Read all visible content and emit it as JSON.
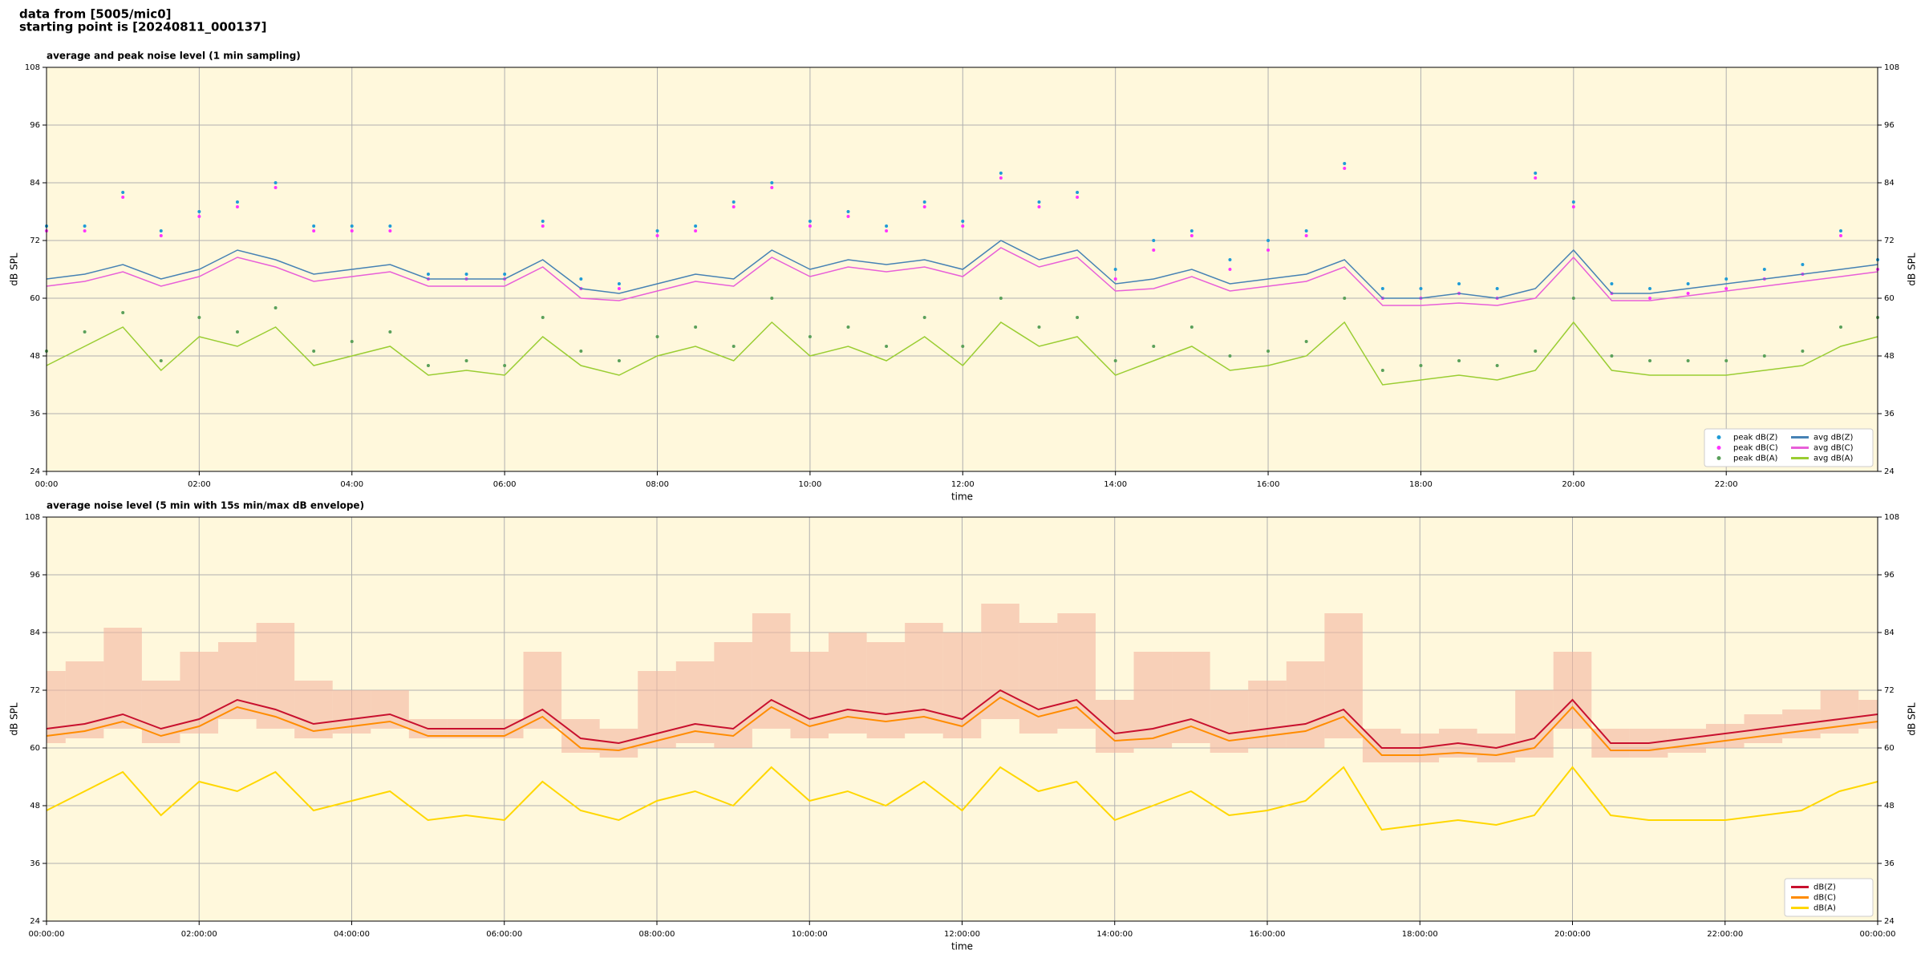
{
  "header": {
    "lines": [
      "data from [5005/mic0]",
      "starting point is [20240811_000137]"
    ]
  },
  "chart_data": [
    {
      "type": "line",
      "title": "average and peak noise level (1 min sampling)",
      "xlabel": "time",
      "ylabel": "dB SPL",
      "x": [
        0,
        30,
        60,
        90,
        120,
        150,
        180,
        210,
        240,
        270,
        300,
        330,
        360,
        390,
        420,
        450,
        480,
        510,
        540,
        570,
        600,
        630,
        660,
        690,
        720,
        750,
        780,
        810,
        840,
        870,
        900,
        930,
        960,
        990,
        1020,
        1050,
        1080,
        1110,
        1140,
        1170,
        1200,
        1230,
        1260,
        1290,
        1320,
        1350,
        1380,
        1410,
        1439
      ],
      "xlim": [
        0,
        1439
      ],
      "xticks": [
        {
          "value": 0,
          "label": "00:00"
        },
        {
          "value": 120,
          "label": "02:00"
        },
        {
          "value": 240,
          "label": "04:00"
        },
        {
          "value": 360,
          "label": "06:00"
        },
        {
          "value": 480,
          "label": "08:00"
        },
        {
          "value": 600,
          "label": "10:00"
        },
        {
          "value": 720,
          "label": "12:00"
        },
        {
          "value": 840,
          "label": "14:00"
        },
        {
          "value": 960,
          "label": "16:00"
        },
        {
          "value": 1080,
          "label": "18:00"
        },
        {
          "value": 1200,
          "label": "20:00"
        },
        {
          "value": 1320,
          "label": "22:00"
        }
      ],
      "ylim": [
        24,
        108
      ],
      "yticks": [
        24,
        36,
        48,
        60,
        72,
        84,
        96,
        108
      ],
      "grid": true,
      "legend": "lower right",
      "legend_columns": 2,
      "series": [
        {
          "name": "peak dB(Z)",
          "mode": "markers",
          "color": "#1f9bd6",
          "values": [
            75,
            75,
            82,
            74,
            78,
            80,
            84,
            75,
            75,
            75,
            65,
            65,
            65,
            76,
            64,
            63,
            74,
            75,
            80,
            84,
            76,
            78,
            75,
            80,
            76,
            86,
            80,
            82,
            66,
            72,
            74,
            68,
            72,
            74,
            88,
            62,
            62,
            63,
            62,
            86,
            80,
            63,
            62,
            63,
            64,
            66,
            67,
            74,
            68
          ]
        },
        {
          "name": "peak dB(C)",
          "mode": "markers",
          "color": "#ff33ff",
          "values": [
            74,
            74,
            81,
            73,
            77,
            79,
            83,
            74,
            74,
            74,
            64,
            64,
            64,
            75,
            62,
            62,
            73,
            74,
            79,
            83,
            75,
            77,
            74,
            79,
            75,
            85,
            79,
            81,
            64,
            70,
            73,
            66,
            70,
            73,
            87,
            60,
            60,
            61,
            60,
            85,
            79,
            61,
            60,
            61,
            62,
            64,
            65,
            73,
            66
          ]
        },
        {
          "name": "peak dB(A)",
          "mode": "markers",
          "color": "#5aa05a",
          "values": [
            49,
            53,
            57,
            47,
            56,
            53,
            58,
            49,
            51,
            53,
            46,
            47,
            46,
            56,
            49,
            47,
            52,
            54,
            50,
            60,
            52,
            54,
            50,
            56,
            50,
            60,
            54,
            56,
            47,
            50,
            54,
            48,
            49,
            51,
            60,
            45,
            46,
            47,
            46,
            49,
            60,
            48,
            47,
            47,
            47,
            48,
            49,
            54,
            56
          ]
        },
        {
          "name": "avg dB(Z)",
          "mode": "lines",
          "color": "#4682b4",
          "values": [
            64,
            65,
            67,
            64,
            66,
            70,
            68,
            65,
            66,
            67,
            64,
            64,
            64,
            68,
            62,
            61,
            63,
            65,
            64,
            70,
            66,
            68,
            67,
            68,
            66,
            72,
            68,
            70,
            63,
            64,
            66,
            63,
            64,
            65,
            68,
            60,
            60,
            61,
            60,
            62,
            70,
            61,
            61,
            62,
            63,
            64,
            65,
            66,
            67
          ]
        },
        {
          "name": "avg dB(C)",
          "mode": "lines",
          "color": "#e85fd8",
          "values": [
            62.5,
            63.5,
            65.5,
            62.5,
            64.5,
            68.5,
            66.5,
            63.5,
            64.5,
            65.5,
            62.5,
            62.5,
            62.5,
            66.5,
            60,
            59.5,
            61.5,
            63.5,
            62.5,
            68.5,
            64.5,
            66.5,
            65.5,
            66.5,
            64.5,
            70.5,
            66.5,
            68.5,
            61.5,
            62,
            64.5,
            61.5,
            62.5,
            63.5,
            66.5,
            58.5,
            58.5,
            59,
            58.5,
            60,
            68.5,
            59.5,
            59.5,
            60.5,
            61.5,
            62.5,
            63.5,
            64.5,
            65.5
          ]
        },
        {
          "name": "avg dB(A)",
          "mode": "lines",
          "color": "#9acd32",
          "values": [
            46,
            50,
            54,
            45,
            52,
            50,
            54,
            46,
            48,
            50,
            44,
            45,
            44,
            52,
            46,
            44,
            48,
            50,
            47,
            55,
            48,
            50,
            47,
            52,
            46,
            55,
            50,
            52,
            44,
            47,
            50,
            45,
            46,
            48,
            55,
            42,
            43,
            44,
            43,
            45,
            55,
            45,
            44,
            44,
            44,
            45,
            46,
            50,
            52
          ]
        }
      ]
    },
    {
      "type": "line",
      "title": "average noise level (5 min with 15s min/max dB envelope)",
      "xlabel": "time",
      "ylabel": "dB SPL",
      "x": [
        0,
        30,
        60,
        90,
        120,
        150,
        180,
        210,
        240,
        270,
        300,
        330,
        360,
        390,
        420,
        450,
        480,
        510,
        540,
        570,
        600,
        630,
        660,
        690,
        720,
        750,
        780,
        810,
        840,
        870,
        900,
        930,
        960,
        990,
        1020,
        1050,
        1080,
        1110,
        1140,
        1170,
        1200,
        1230,
        1260,
        1290,
        1320,
        1350,
        1380,
        1410,
        1440
      ],
      "xlim": [
        0,
        1440
      ],
      "xticks": [
        {
          "value": 0,
          "label": "00:00:00"
        },
        {
          "value": 120,
          "label": "02:00:00"
        },
        {
          "value": 240,
          "label": "04:00:00"
        },
        {
          "value": 360,
          "label": "06:00:00"
        },
        {
          "value": 480,
          "label": "08:00:00"
        },
        {
          "value": 600,
          "label": "10:00:00"
        },
        {
          "value": 720,
          "label": "12:00:00"
        },
        {
          "value": 840,
          "label": "14:00:00"
        },
        {
          "value": 960,
          "label": "16:00:00"
        },
        {
          "value": 1080,
          "label": "18:00:00"
        },
        {
          "value": 1200,
          "label": "20:00:00"
        },
        {
          "value": 1320,
          "label": "22:00:00"
        },
        {
          "value": 1440,
          "label": "00:00:00"
        }
      ],
      "ylim": [
        24,
        108
      ],
      "yticks": [
        24,
        36,
        48,
        60,
        72,
        84,
        96,
        108
      ],
      "grid": true,
      "legend": "lower right",
      "legend_columns": 1,
      "band_color": "#f4b6a0",
      "band_low": [
        61,
        62,
        64,
        61,
        63,
        66,
        64,
        62,
        63,
        64,
        62,
        62,
        62,
        64,
        59,
        58,
        60,
        61,
        60,
        64,
        62,
        63,
        62,
        63,
        62,
        66,
        63,
        64,
        59,
        60,
        61,
        59,
        60,
        60,
        62,
        57,
        57,
        58,
        57,
        58,
        64,
        58,
        58,
        59,
        60,
        61,
        62,
        63,
        64
      ],
      "band_high": [
        76,
        78,
        85,
        74,
        80,
        82,
        86,
        74,
        72,
        72,
        66,
        66,
        66,
        80,
        66,
        64,
        76,
        78,
        82,
        88,
        80,
        84,
        82,
        86,
        84,
        90,
        86,
        88,
        70,
        80,
        80,
        72,
        74,
        78,
        88,
        64,
        63,
        64,
        63,
        72,
        80,
        64,
        64,
        64,
        65,
        67,
        68,
        72,
        70
      ],
      "series": [
        {
          "name": "dB(Z)",
          "mode": "lines",
          "color": "#c8102e",
          "values": [
            64,
            65,
            67,
            64,
            66,
            70,
            68,
            65,
            66,
            67,
            64,
            64,
            64,
            68,
            62,
            61,
            63,
            65,
            64,
            70,
            66,
            68,
            67,
            68,
            66,
            72,
            68,
            70,
            63,
            64,
            66,
            63,
            64,
            65,
            68,
            60,
            60,
            61,
            60,
            62,
            70,
            61,
            61,
            62,
            63,
            64,
            65,
            66,
            67
          ]
        },
        {
          "name": "dB(C)",
          "mode": "lines",
          "color": "#ff8c00",
          "values": [
            62.5,
            63.5,
            65.5,
            62.5,
            64.5,
            68.5,
            66.5,
            63.5,
            64.5,
            65.5,
            62.5,
            62.5,
            62.5,
            66.5,
            60,
            59.5,
            61.5,
            63.5,
            62.5,
            68.5,
            64.5,
            66.5,
            65.5,
            66.5,
            64.5,
            70.5,
            66.5,
            68.5,
            61.5,
            62,
            64.5,
            61.5,
            62.5,
            63.5,
            66.5,
            58.5,
            58.5,
            59,
            58.5,
            60,
            68.5,
            59.5,
            59.5,
            60.5,
            61.5,
            62.5,
            63.5,
            64.5,
            65.5
          ]
        },
        {
          "name": "dB(A)",
          "mode": "lines",
          "color": "#ffd700",
          "values": [
            47,
            51,
            55,
            46,
            53,
            51,
            55,
            47,
            49,
            51,
            45,
            46,
            45,
            53,
            47,
            45,
            49,
            51,
            48,
            56,
            49,
            51,
            48,
            53,
            47,
            56,
            51,
            53,
            45,
            48,
            51,
            46,
            47,
            49,
            56,
            43,
            44,
            45,
            44,
            46,
            56,
            46,
            45,
            45,
            45,
            46,
            47,
            51,
            53
          ]
        }
      ]
    }
  ]
}
